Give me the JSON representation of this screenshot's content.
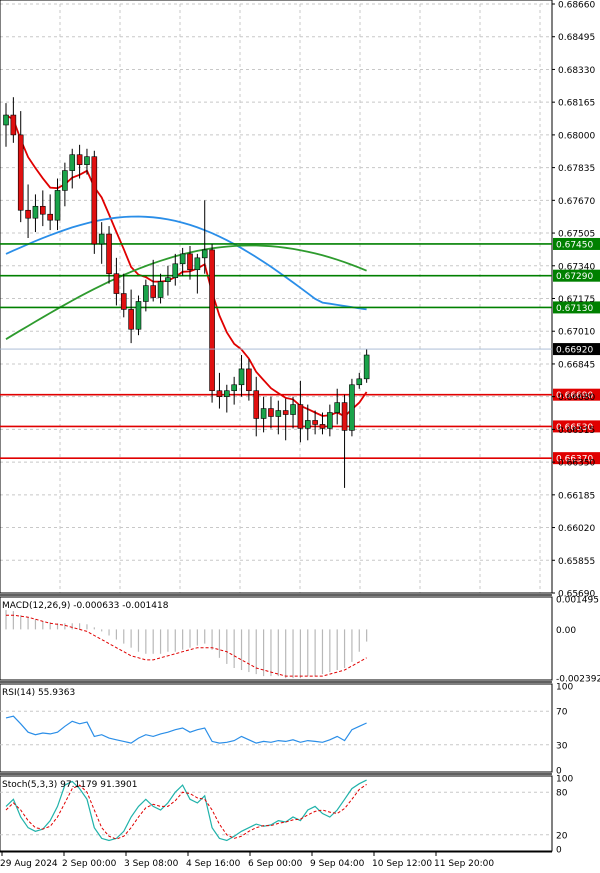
{
  "chart_data": {
    "type": "candlestick",
    "price_axis": {
      "range": [
        0.6569,
        0.6866
      ],
      "ticks": [
        "0.68660",
        "0.68495",
        "0.68330",
        "0.68165",
        "0.68000",
        "0.67835",
        "0.67670",
        "0.67505",
        "0.67340",
        "0.67175",
        "0.67010",
        "0.66845",
        "0.66680",
        "0.66515",
        "0.66350",
        "0.66185",
        "0.66020",
        "0.65855",
        "0.65690"
      ]
    },
    "current_price": "0.66920",
    "levels": [
      {
        "value": 0.6745,
        "label": "0.67450",
        "color": "#008000"
      },
      {
        "value": 0.6729,
        "label": "0.67290",
        "color": "#008000"
      },
      {
        "value": 0.6713,
        "label": "0.67130",
        "color": "#008000"
      },
      {
        "value": 0.6669,
        "label": "0.66690",
        "color": "#e00000"
      },
      {
        "value": 0.6653,
        "label": "0.66530",
        "color": "#e00000"
      },
      {
        "value": 0.6637,
        "label": "0.66370",
        "color": "#e00000"
      }
    ],
    "time_labels": [
      "29 Aug 2024",
      "2 Sep 00:00",
      "3 Sep 08:00",
      "4 Sep 16:00",
      "6 Sep 00:00",
      "9 Sep 04:00",
      "10 Sep 12:00",
      "11 Sep 20:00"
    ],
    "candles": [
      [
        0.6805,
        0.6816,
        0.6794,
        0.681
      ],
      [
        0.681,
        0.6819,
        0.6796,
        0.68
      ],
      [
        0.68,
        0.6812,
        0.6756,
        0.6762
      ],
      [
        0.6762,
        0.6775,
        0.6748,
        0.6758
      ],
      [
        0.6758,
        0.677,
        0.6751,
        0.6764
      ],
      [
        0.6764,
        0.6772,
        0.6754,
        0.676
      ],
      [
        0.676,
        0.677,
        0.6752,
        0.6757
      ],
      [
        0.6757,
        0.6778,
        0.6752,
        0.6772
      ],
      [
        0.6772,
        0.6786,
        0.6764,
        0.6782
      ],
      [
        0.6782,
        0.6793,
        0.6773,
        0.679
      ],
      [
        0.679,
        0.6795,
        0.6778,
        0.6785
      ],
      [
        0.6785,
        0.6793,
        0.678,
        0.6789
      ],
      [
        0.6789,
        0.6792,
        0.674,
        0.6745
      ],
      [
        0.6745,
        0.6756,
        0.6735,
        0.675
      ],
      [
        0.675,
        0.6754,
        0.6725,
        0.673
      ],
      [
        0.673,
        0.6738,
        0.6714,
        0.672
      ],
      [
        0.672,
        0.673,
        0.6708,
        0.6712
      ],
      [
        0.6712,
        0.6722,
        0.6695,
        0.6702
      ],
      [
        0.6702,
        0.6719,
        0.6699,
        0.6716
      ],
      [
        0.6716,
        0.6727,
        0.6711,
        0.6724
      ],
      [
        0.6724,
        0.6737,
        0.6716,
        0.6718
      ],
      [
        0.6718,
        0.673,
        0.6715,
        0.6726
      ],
      [
        0.6726,
        0.6734,
        0.6719,
        0.6728
      ],
      [
        0.6728,
        0.674,
        0.6724,
        0.6735
      ],
      [
        0.6735,
        0.6743,
        0.6729,
        0.674
      ],
      [
        0.674,
        0.6744,
        0.6727,
        0.6732
      ],
      [
        0.6732,
        0.674,
        0.672,
        0.6738
      ],
      [
        0.6738,
        0.6767,
        0.673,
        0.6742
      ],
      [
        0.6742,
        0.6745,
        0.6665,
        0.6671
      ],
      [
        0.6671,
        0.668,
        0.6662,
        0.6668
      ],
      [
        0.6668,
        0.6674,
        0.666,
        0.6671
      ],
      [
        0.6671,
        0.6678,
        0.6664,
        0.6674
      ],
      [
        0.6674,
        0.6689,
        0.6668,
        0.6682
      ],
      [
        0.6682,
        0.6687,
        0.6666,
        0.6671
      ],
      [
        0.6671,
        0.6678,
        0.6648,
        0.6657
      ],
      [
        0.6657,
        0.6668,
        0.665,
        0.6662
      ],
      [
        0.6662,
        0.6668,
        0.6652,
        0.6658
      ],
      [
        0.6658,
        0.6666,
        0.6649,
        0.6661
      ],
      [
        0.6661,
        0.6667,
        0.6646,
        0.6659
      ],
      [
        0.6659,
        0.6668,
        0.6652,
        0.6664
      ],
      [
        0.6664,
        0.6676,
        0.6645,
        0.6652
      ],
      [
        0.6652,
        0.6664,
        0.6646,
        0.6656
      ],
      [
        0.6656,
        0.6661,
        0.6649,
        0.6654
      ],
      [
        0.6654,
        0.666,
        0.6649,
        0.6652
      ],
      [
        0.6652,
        0.6664,
        0.6648,
        0.666
      ],
      [
        0.666,
        0.6672,
        0.6654,
        0.6665
      ],
      [
        0.6665,
        0.6669,
        0.6622,
        0.6651
      ],
      [
        0.6651,
        0.6677,
        0.6648,
        0.6674
      ],
      [
        0.6674,
        0.668,
        0.6672,
        0.6677
      ],
      [
        0.6677,
        0.6692,
        0.6675,
        0.6689
      ]
    ],
    "indicators": [
      {
        "label": "MACD(12,26,9) -0.000633 -0.001418",
        "axis_labels": [
          "0.001495",
          "0.00",
          "-0.002392"
        ],
        "range": [
          -0.002392,
          0.001495
        ],
        "histogram": [
          0.00095,
          0.0009,
          0.0007,
          0.0006,
          0.0005,
          0.0004,
          0.00035,
          0.0003,
          0.0003,
          0.0003,
          0.0003,
          0.00025,
          0.0001,
          -0.0001,
          -0.0003,
          -0.0005,
          -0.0007,
          -0.0009,
          -0.0011,
          -0.0012,
          -0.0012,
          -0.0012,
          -0.0011,
          -0.0011,
          -0.001,
          -0.0009,
          -0.0008,
          -0.0007,
          -0.001,
          -0.0014,
          -0.0017,
          -0.0019,
          -0.002,
          -0.0021,
          -0.0022,
          -0.0023,
          -0.0023,
          -0.0023,
          -0.0024,
          -0.0024,
          -0.0024,
          -0.0023,
          -0.0023,
          -0.0022,
          -0.0021,
          -0.002,
          -0.0019,
          -0.0016,
          -0.0011,
          -0.0006
        ],
        "signal": [
          0.0007,
          0.0007,
          0.00065,
          0.0006,
          0.0005,
          0.0004,
          0.0003,
          0.00025,
          0.0002,
          0.0001,
          0.0,
          -0.0001,
          -0.0003,
          -0.0005,
          -0.0007,
          -0.0009,
          -0.0011,
          -0.0013,
          -0.0014,
          -0.0015,
          -0.0015,
          -0.0014,
          -0.0013,
          -0.0012,
          -0.0011,
          -0.001,
          -0.0009,
          -0.0009,
          -0.0009,
          -0.001,
          -0.0011,
          -0.0013,
          -0.0015,
          -0.0017,
          -0.0019,
          -0.002,
          -0.0021,
          -0.0022,
          -0.0023,
          -0.0023,
          -0.0023,
          -0.0023,
          -0.0023,
          -0.0023,
          -0.0022,
          -0.0021,
          -0.002,
          -0.0018,
          -0.0016,
          -0.0014
        ]
      },
      {
        "label": "RSI(14) 55.9363",
        "axis_labels": [
          "100",
          "70",
          "30",
          "0"
        ],
        "range": [
          0,
          100
        ],
        "values": [
          62,
          64,
          55,
          45,
          42,
          44,
          43,
          45,
          52,
          58,
          55,
          57,
          40,
          42,
          38,
          36,
          34,
          32,
          38,
          42,
          40,
          43,
          45,
          48,
          50,
          45,
          48,
          50,
          34,
          32,
          33,
          35,
          40,
          36,
          32,
          34,
          33,
          35,
          34,
          36,
          33,
          35,
          34,
          33,
          36,
          40,
          35,
          48,
          52,
          56
        ]
      },
      {
        "label": "Stoch(5,3,3) 97.1179 91.3901",
        "axis_labels": [
          "100",
          "80",
          "20",
          "0"
        ],
        "range": [
          0,
          100
        ],
        "k": [
          60,
          70,
          45,
          30,
          25,
          28,
          40,
          60,
          90,
          95,
          85,
          70,
          30,
          15,
          12,
          15,
          25,
          45,
          60,
          70,
          60,
          55,
          65,
          80,
          90,
          70,
          65,
          75,
          30,
          15,
          12,
          18,
          25,
          30,
          35,
          32,
          34,
          40,
          38,
          45,
          40,
          55,
          60,
          50,
          45,
          55,
          70,
          85,
          92,
          97
        ],
        "d": [
          55,
          65,
          55,
          40,
          30,
          28,
          32,
          45,
          65,
          85,
          90,
          80,
          55,
          30,
          18,
          14,
          18,
          30,
          45,
          58,
          63,
          60,
          60,
          68,
          80,
          78,
          72,
          70,
          55,
          35,
          20,
          15,
          18,
          25,
          30,
          33,
          33,
          36,
          38,
          41,
          42,
          48,
          53,
          55,
          52,
          50,
          57,
          70,
          84,
          91
        ]
      }
    ]
  }
}
